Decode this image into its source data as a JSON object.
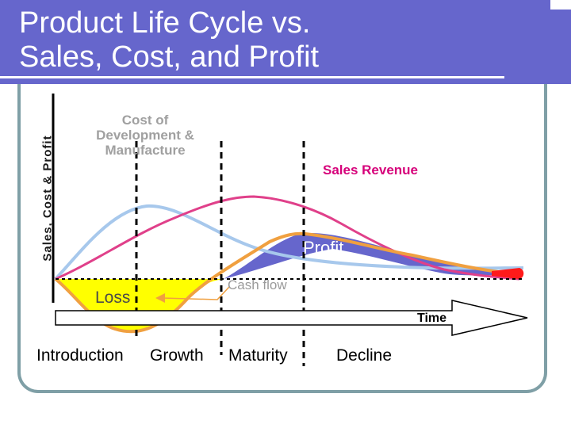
{
  "title": "Product Life Cycle vs.\nSales, Cost, and Profit",
  "y_axis_label": "Sales, Cost & Profit",
  "cost_label": "Cost of Development & Manufacture",
  "sales_label": "Sales Revenue",
  "profit_label": "Profit",
  "cash_flow_label": "Cash flow",
  "loss_label": "Loss",
  "time_label": "Time",
  "stages": [
    {
      "name": "Introduction"
    },
    {
      "name": "Growth"
    },
    {
      "name": "Maturity"
    },
    {
      "name": "Decline"
    }
  ],
  "colors": {
    "header": "#6666cc",
    "sales_curve": "#e0408a",
    "cost_curve": "#a7c8ec",
    "profit_curve": "#f0a040",
    "profit_fill": "#6666cc",
    "loss_fill": "#ffff00",
    "panel_border": "#7f9fa6"
  }
}
